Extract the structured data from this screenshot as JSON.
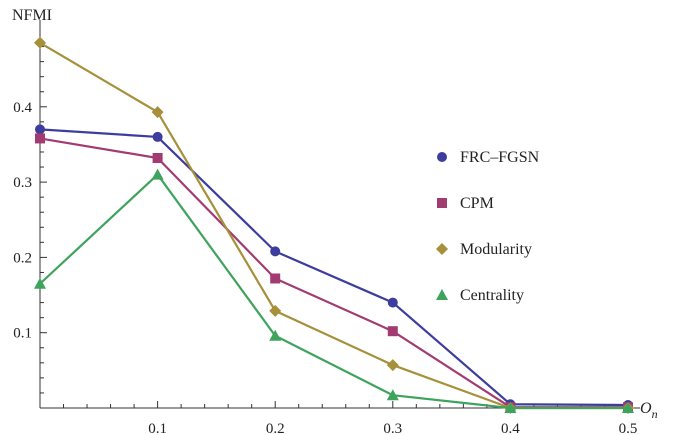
{
  "chart_data": {
    "type": "line",
    "title": "",
    "xlabel": "O",
    "xlabel_subscript": "n",
    "ylabel": "NFMI",
    "x": [
      0,
      0.1,
      0.2,
      0.3,
      0.4,
      0.5
    ],
    "x_ticks": [
      "0.1",
      "0.2",
      "0.3",
      "0.4",
      "0.5"
    ],
    "y_ticks": [
      "0.1",
      "0.2",
      "0.3",
      "0.4"
    ],
    "xlim": [
      0,
      0.5
    ],
    "ylim": [
      0,
      0.49
    ],
    "grid": false,
    "legend_position": "right",
    "series": [
      {
        "name": "FRC–FGSN",
        "marker": "circle",
        "color": "#3d3d9e",
        "values": [
          0.37,
          0.36,
          0.208,
          0.14,
          0.005,
          0.004
        ]
      },
      {
        "name": "CPM",
        "marker": "square",
        "color": "#a23b72",
        "values": [
          0.358,
          0.332,
          0.172,
          0.102,
          0.001,
          0.001
        ]
      },
      {
        "name": "Modularity",
        "marker": "diamond",
        "color": "#a6903a",
        "values": [
          0.485,
          0.393,
          0.129,
          0.057,
          0.0,
          0.0
        ]
      },
      {
        "name": "Centrality",
        "marker": "triangle",
        "color": "#3ea35d",
        "values": [
          0.165,
          0.31,
          0.096,
          0.017,
          0.0,
          0.0
        ]
      }
    ]
  }
}
